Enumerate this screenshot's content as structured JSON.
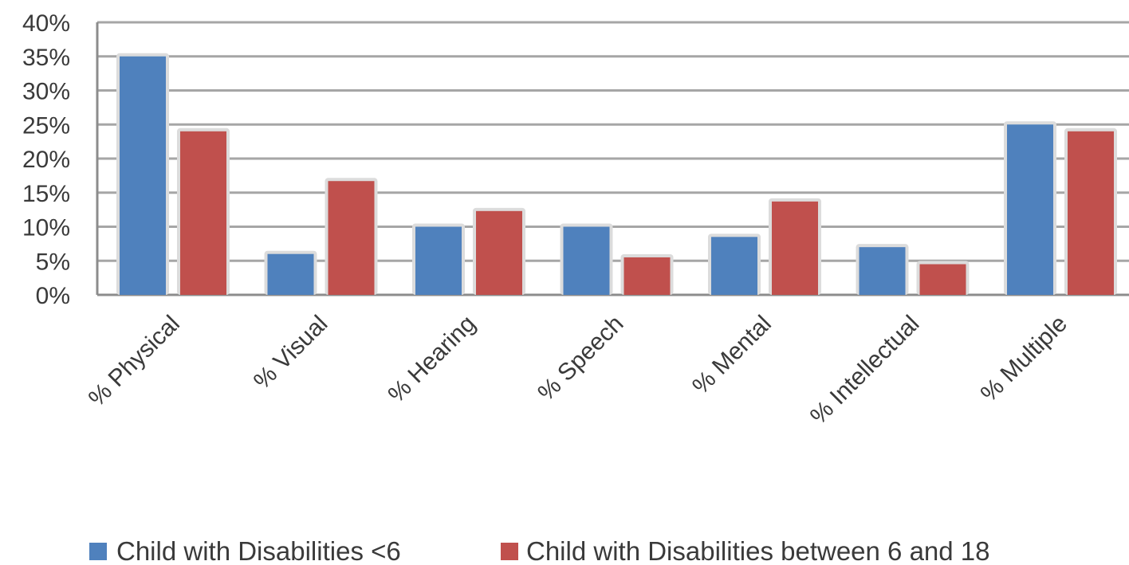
{
  "chart_data": {
    "type": "bar",
    "title": "",
    "xlabel": "",
    "ylabel": "",
    "ylim": [
      0,
      40
    ],
    "y_ticks": [
      0,
      5,
      10,
      15,
      20,
      25,
      30,
      35,
      40
    ],
    "y_tick_format": "percent",
    "grid": true,
    "legend_position": "bottom",
    "categories": [
      "% Physical",
      "% Visual",
      "% Hearing",
      "% Speech",
      "% Mental",
      "% Intellectual",
      "% Multiple"
    ],
    "series": [
      {
        "name": "Child with Disabilities <6",
        "color": "#4f81bd",
        "values": [
          35,
          6,
          10,
          10,
          8.5,
          7,
          25
        ]
      },
      {
        "name": "Child with Disabilities between 6 and 18",
        "color": "#c0504d",
        "values": [
          24,
          16.7,
          12.3,
          5.5,
          13.7,
          4.5,
          24
        ]
      }
    ]
  }
}
